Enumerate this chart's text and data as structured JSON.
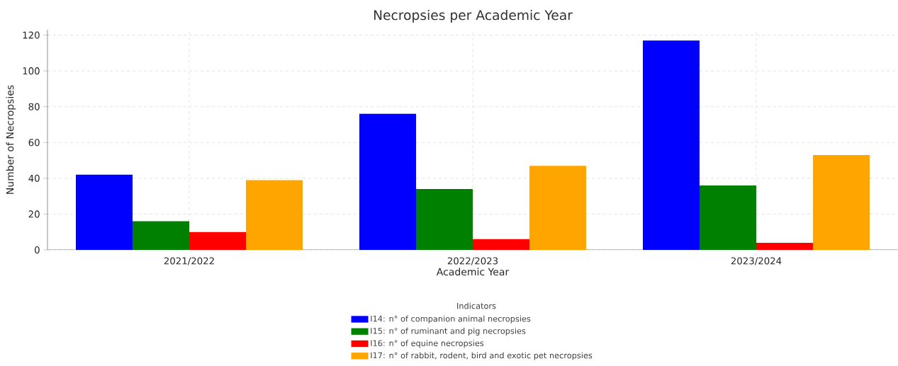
{
  "chart_data": {
    "type": "bar",
    "title": "Necropsies per Academic Year",
    "xlabel": "Academic Year",
    "ylabel": "Number of Necropsies",
    "legend_title": "Indicators",
    "categories": [
      "2021/2022",
      "2022/2023",
      "2023/2024"
    ],
    "series": [
      {
        "name": "I14: n° of companion animal necropsies",
        "color": "#0000ff",
        "values": [
          42,
          76,
          117
        ]
      },
      {
        "name": "I15: n° of ruminant and pig necropsies",
        "color": "#008000",
        "values": [
          16,
          34,
          36
        ]
      },
      {
        "name": "I16: n° of equine necropsies",
        "color": "#ff0000",
        "values": [
          10,
          6,
          4
        ]
      },
      {
        "name": "I17: n° of rabbit, rodent, bird and exotic pet necropsies",
        "color": "#ffa500",
        "values": [
          39,
          47,
          53
        ]
      }
    ],
    "ylim": [
      0,
      123
    ],
    "yticks": [
      0,
      20,
      40,
      60,
      80,
      100,
      120
    ],
    "grid": true,
    "legend": "bottom"
  }
}
